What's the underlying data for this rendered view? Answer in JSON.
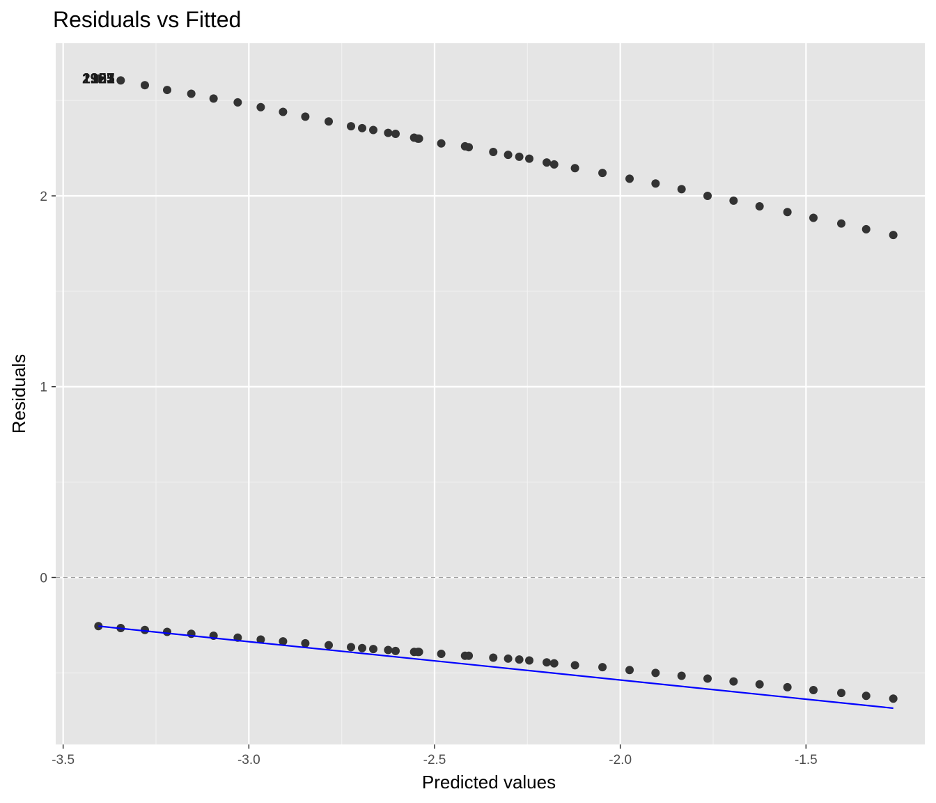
{
  "chart_data": {
    "type": "scatter",
    "title": "Residuals vs Fitted",
    "xlabel": "Predicted values",
    "ylabel": "Residuals",
    "xlim": [
      -3.52,
      -1.18
    ],
    "ylim": [
      -0.875,
      2.8
    ],
    "x_ticks": [
      -3.5,
      -3.0,
      -2.5,
      -2.0,
      -1.5
    ],
    "x_tick_labels": [
      "-3.5",
      "-3.0",
      "-2.5",
      "-2.0",
      "-1.5"
    ],
    "y_ticks": [
      0,
      1,
      2
    ],
    "y_tick_labels": [
      "0",
      "1",
      "2"
    ],
    "grid": true,
    "panel_background": "#e5e5e5",
    "point_color": "#333333",
    "smooth_color": "#0000ff",
    "reference_line": {
      "y": 0,
      "style": "dashed",
      "color": "#a0a0a0"
    },
    "fitted_values": [
      -3.405,
      -3.345,
      -3.28,
      -3.22,
      -3.155,
      -3.095,
      -3.03,
      -2.968,
      -2.908,
      -2.848,
      -2.785,
      -2.725,
      -2.695,
      -2.665,
      -2.625,
      -2.605,
      -2.555,
      -2.545,
      -2.542,
      -2.482,
      -2.418,
      -2.408,
      -2.342,
      -2.302,
      -2.272,
      -2.245,
      -2.198,
      -2.178,
      -2.122,
      -2.048,
      -1.975,
      -1.905,
      -1.835,
      -1.765,
      -1.695,
      -1.625,
      -1.55,
      -1.48,
      -1.405,
      -1.338,
      -1.265
    ],
    "upper_series": {
      "values": [
        2.615,
        2.605,
        2.58,
        2.555,
        2.535,
        2.51,
        2.49,
        2.465,
        2.44,
        2.415,
        2.39,
        2.365,
        2.355,
        2.345,
        2.33,
        2.325,
        2.305,
        2.3,
        2.3,
        2.275,
        2.26,
        2.255,
        2.23,
        2.215,
        2.205,
        2.195,
        2.175,
        2.165,
        2.145,
        2.12,
        2.09,
        2.065,
        2.035,
        2.0,
        1.975,
        1.945,
        1.915,
        1.885,
        1.855,
        1.825,
        1.795
      ]
    },
    "lower_series": {
      "values": [
        -0.255,
        -0.265,
        -0.275,
        -0.285,
        -0.295,
        -0.305,
        -0.315,
        -0.325,
        -0.335,
        -0.345,
        -0.355,
        -0.365,
        -0.37,
        -0.375,
        -0.38,
        -0.385,
        -0.39,
        -0.39,
        -0.39,
        -0.4,
        -0.41,
        -0.41,
        -0.42,
        -0.425,
        -0.43,
        -0.435,
        -0.445,
        -0.45,
        -0.46,
        -0.47,
        -0.485,
        -0.5,
        -0.515,
        -0.53,
        -0.545,
        -0.56,
        -0.575,
        -0.59,
        -0.605,
        -0.62,
        -0.635
      ]
    },
    "smooth_line": {
      "x": [
        -3.405,
        -1.265
      ],
      "y": [
        -0.255,
        -0.685
      ]
    },
    "point_labels": [
      {
        "text": "1925",
        "x": -3.405,
        "y": 2.615
      },
      {
        "text": "1927",
        "x": -3.405,
        "y": 2.615
      },
      {
        "text": "1951",
        "x": -3.405,
        "y": 2.615
      },
      {
        "text": "1963",
        "x": -3.405,
        "y": 2.615
      },
      {
        "text": "2101",
        "x": -3.405,
        "y": 2.615
      }
    ]
  }
}
